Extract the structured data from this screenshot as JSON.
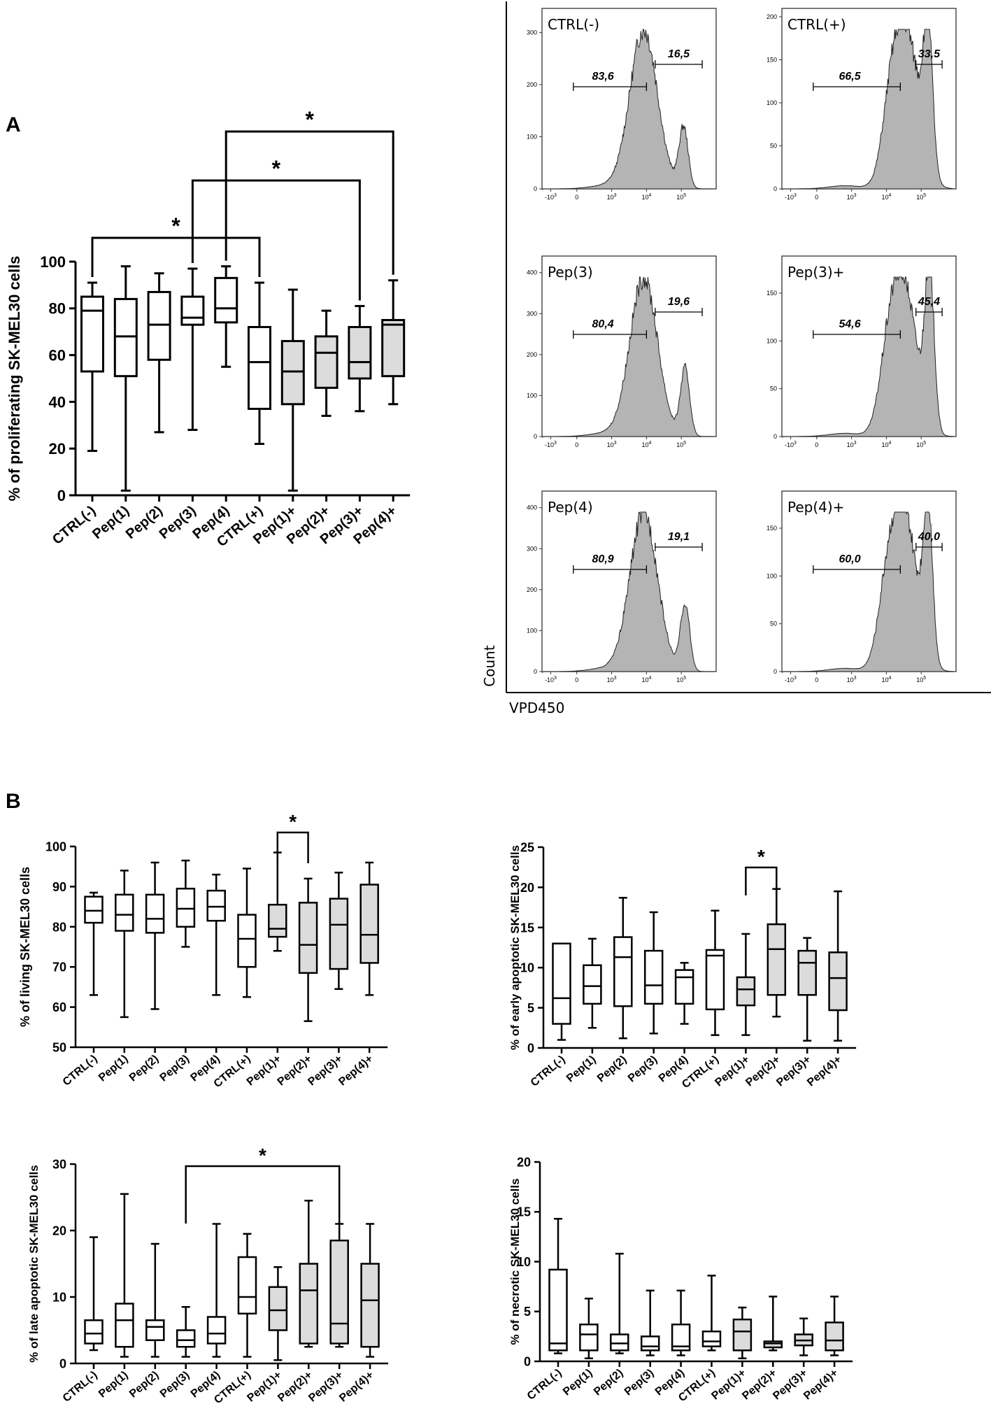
{
  "panel_labels": {
    "a": "A",
    "b": "B"
  },
  "colors": {
    "open_box": "#ffffff",
    "filled_box": "#dcdcdc",
    "histogram_fill": "#b4b4b4",
    "ink": "#000000"
  },
  "chart_data": [
    {
      "id": "proliferating",
      "type": "boxplot",
      "ylabel": "% of proliferating SK-MEL30 cells",
      "ylim": [
        0,
        100
      ],
      "yticks": [
        0,
        20,
        40,
        60,
        80,
        100
      ],
      "categories": [
        "CTRL(-)",
        "Pep(1)",
        "Pep(2)",
        "Pep(3)",
        "Pep(4)",
        "CTRL(+)",
        "Pep(1)+",
        "Pep(2)+",
        "Pep(3)+",
        "Pep(4)+"
      ],
      "filled": [
        false,
        false,
        false,
        false,
        false,
        false,
        true,
        true,
        true,
        true
      ],
      "boxes": [
        {
          "min": 19,
          "q1": 53,
          "median": 79,
          "q3": 85,
          "max": 91
        },
        {
          "min": 2,
          "q1": 51,
          "median": 68,
          "q3": 84,
          "max": 98
        },
        {
          "min": 27,
          "q1": 58,
          "median": 73,
          "q3": 87,
          "max": 95
        },
        {
          "min": 28,
          "q1": 73,
          "median": 76,
          "q3": 85,
          "max": 97
        },
        {
          "min": 55,
          "q1": 74,
          "median": 80,
          "q3": 93,
          "max": 98
        },
        {
          "min": 22,
          "q1": 37,
          "median": 57,
          "q3": 72,
          "max": 91
        },
        {
          "min": 2,
          "q1": 39,
          "median": 53,
          "q3": 66,
          "max": 88
        },
        {
          "min": 34,
          "q1": 46,
          "median": 61,
          "q3": 68,
          "max": 79
        },
        {
          "min": 36,
          "q1": 50,
          "median": 57,
          "q3": 72,
          "max": 81
        },
        {
          "min": 39,
          "q1": 51,
          "median": 73,
          "q3": 75,
          "max": 92
        }
      ],
      "significance": [
        {
          "from": 0,
          "to": 5,
          "label": "*"
        },
        {
          "from": 3,
          "to": 8,
          "label": "*"
        },
        {
          "from": 4,
          "to": 9,
          "label": "*"
        }
      ]
    },
    {
      "id": "living",
      "type": "boxplot",
      "ylabel": "% of living SK-MEL30 cells",
      "ylim": [
        50,
        100
      ],
      "yticks": [
        50,
        60,
        70,
        80,
        90,
        100
      ],
      "categories": [
        "CTRL(-)",
        "Pep(1)",
        "Pep(2)",
        "Pep(3)",
        "Pep(4)",
        "CTRL(+)",
        "Pep(1)+",
        "Pep(2)+",
        "Pep(3)+",
        "Pep(4)+"
      ],
      "filled": [
        false,
        false,
        false,
        false,
        false,
        false,
        true,
        true,
        true,
        true
      ],
      "boxes": [
        {
          "min": 63,
          "q1": 81,
          "median": 84,
          "q3": 87.5,
          "max": 88.5
        },
        {
          "min": 57.5,
          "q1": 79,
          "median": 83,
          "q3": 88,
          "max": 94
        },
        {
          "min": 59.5,
          "q1": 78.5,
          "median": 82,
          "q3": 88,
          "max": 96
        },
        {
          "min": 75,
          "q1": 80,
          "median": 84.5,
          "q3": 89.5,
          "max": 96.5
        },
        {
          "min": 63,
          "q1": 81.5,
          "median": 85,
          "q3": 89,
          "max": 93
        },
        {
          "min": 62.5,
          "q1": 70,
          "median": 77,
          "q3": 83,
          "max": 94.5
        },
        {
          "min": 74,
          "q1": 77.5,
          "median": 79.5,
          "q3": 85.5,
          "max": 98.5
        },
        {
          "min": 56.5,
          "q1": 68.5,
          "median": 75.5,
          "q3": 86,
          "max": 92
        },
        {
          "min": 64.5,
          "q1": 69.5,
          "median": 80.5,
          "q3": 87,
          "max": 93.5
        },
        {
          "min": 63,
          "q1": 71,
          "median": 78,
          "q3": 90.5,
          "max": 96
        }
      ],
      "significance": [
        {
          "from": 6,
          "to": 7,
          "label": "*"
        }
      ]
    },
    {
      "id": "early_apoptotic",
      "type": "boxplot",
      "ylabel": "% of early apoptotic SK-MEL30 cells",
      "ylim": [
        0,
        25
      ],
      "yticks": [
        0,
        5,
        10,
        15,
        20,
        25
      ],
      "categories": [
        "CTRL(-)",
        "Pep(1)",
        "Pep(2)",
        "Pep(3)",
        "Pep(4)",
        "CTRL(+)",
        "Pep(1)+",
        "Pep(2)+",
        "Pep(3)+",
        "Pep(4)+"
      ],
      "filled": [
        false,
        false,
        false,
        false,
        false,
        false,
        true,
        true,
        true,
        true
      ],
      "boxes": [
        {
          "min": 1,
          "q1": 3,
          "median": 6.2,
          "q3": 13,
          "max": 13
        },
        {
          "min": 2.5,
          "q1": 5.5,
          "median": 7.7,
          "q3": 10.3,
          "max": 13.6
        },
        {
          "min": 1.2,
          "q1": 5.2,
          "median": 11.3,
          "q3": 13.8,
          "max": 18.7
        },
        {
          "min": 1.8,
          "q1": 5.5,
          "median": 7.8,
          "q3": 12.1,
          "max": 16.9
        },
        {
          "min": 3,
          "q1": 5.5,
          "median": 8.8,
          "q3": 9.7,
          "max": 10.6
        },
        {
          "min": 1.6,
          "q1": 4.8,
          "median": 11.5,
          "q3": 12.2,
          "max": 17.1
        },
        {
          "min": 1.6,
          "q1": 5.3,
          "median": 7.3,
          "q3": 8.8,
          "max": 14.2
        },
        {
          "min": 3.9,
          "q1": 6.6,
          "median": 12.3,
          "q3": 15.4,
          "max": 19.8
        },
        {
          "min": 0.9,
          "q1": 6.6,
          "median": 10.6,
          "q3": 12.1,
          "max": 13.7
        },
        {
          "min": 0.9,
          "q1": 4.7,
          "median": 8.7,
          "q3": 11.9,
          "max": 19.5
        }
      ],
      "significance": [
        {
          "from": 6,
          "to": 7,
          "label": "*"
        }
      ]
    },
    {
      "id": "late_apoptotic",
      "type": "boxplot",
      "ylabel": "% of late apoptotic SK-MEL30 cells",
      "ylim": [
        0,
        30
      ],
      "yticks": [
        0,
        10,
        20,
        30
      ],
      "categories": [
        "CTRL(-)",
        "Pep(1)",
        "Pep(2)",
        "Pep(3)",
        "Pep(4)",
        "CTRL(+)",
        "Pep(1)+",
        "Pep(2)+",
        "Pep(3)+",
        "Pep(4)+"
      ],
      "filled": [
        false,
        false,
        false,
        false,
        false,
        false,
        true,
        true,
        true,
        true
      ],
      "boxes": [
        {
          "min": 2,
          "q1": 3,
          "median": 4.5,
          "q3": 6.5,
          "max": 19
        },
        {
          "min": 1,
          "q1": 2.5,
          "median": 6.5,
          "q3": 9,
          "max": 25.5
        },
        {
          "min": 1,
          "q1": 3.5,
          "median": 5.5,
          "q3": 6.5,
          "max": 18
        },
        {
          "min": 1,
          "q1": 2.5,
          "median": 3.5,
          "q3": 5,
          "max": 8.5
        },
        {
          "min": 1,
          "q1": 3,
          "median": 4.5,
          "q3": 7,
          "max": 21
        },
        {
          "min": 1,
          "q1": 7.5,
          "median": 10,
          "q3": 16,
          "max": 19.5
        },
        {
          "min": 0.5,
          "q1": 5,
          "median": 8,
          "q3": 11.5,
          "max": 14.5
        },
        {
          "min": 2.5,
          "q1": 3,
          "median": 11,
          "q3": 15,
          "max": 24.5
        },
        {
          "min": 2.5,
          "q1": 3,
          "median": 6,
          "q3": 18.5,
          "max": 21
        },
        {
          "min": 1,
          "q1": 2.5,
          "median": 9.5,
          "q3": 15,
          "max": 21
        }
      ],
      "significance": [
        {
          "from": 3,
          "to": 8,
          "label": "*"
        }
      ]
    },
    {
      "id": "necrotic",
      "type": "boxplot",
      "ylabel": "% of necrotic SK-MEL30 cells",
      "ylim": [
        0,
        20
      ],
      "yticks": [
        0,
        5,
        10,
        15,
        20
      ],
      "categories": [
        "CTRL(-)",
        "Pep(1)",
        "Pep(2)",
        "Pep(3)",
        "Pep(4)",
        "CTRL(+)",
        "Pep(1)+",
        "Pep(2)+",
        "Pep(3)+",
        "Pep(4)+"
      ],
      "filled": [
        false,
        false,
        false,
        false,
        false,
        false,
        true,
        true,
        true,
        true
      ],
      "boxes": [
        {
          "min": 0.8,
          "q1": 1.1,
          "median": 1.8,
          "q3": 9.2,
          "max": 14.3
        },
        {
          "min": 0.3,
          "q1": 1.1,
          "median": 2.7,
          "q3": 3.7,
          "max": 6.3
        },
        {
          "min": 0.8,
          "q1": 1.1,
          "median": 1.8,
          "q3": 2.7,
          "max": 10.8
        },
        {
          "min": 0.6,
          "q1": 1.1,
          "median": 1.5,
          "q3": 2.5,
          "max": 7.1
        },
        {
          "min": 0.6,
          "q1": 1.1,
          "median": 1.5,
          "q3": 3.7,
          "max": 7.1
        },
        {
          "min": 1.1,
          "q1": 1.5,
          "median": 2.0,
          "q3": 3.0,
          "max": 8.6
        },
        {
          "min": 0.3,
          "q1": 1.1,
          "median": 3.0,
          "q3": 4.2,
          "max": 5.4
        },
        {
          "min": 1.1,
          "q1": 1.4,
          "median": 1.8,
          "q3": 2.0,
          "max": 6.5
        },
        {
          "min": 0.6,
          "q1": 1.6,
          "median": 2.1,
          "q3": 2.7,
          "max": 4.3
        },
        {
          "min": 0.6,
          "q1": 1.1,
          "median": 2.1,
          "q3": 3.9,
          "max": 6.5
        }
      ],
      "significance": []
    },
    {
      "id": "flow_histograms",
      "type": "histogram",
      "xlabel": "VPD450",
      "ylabel": "Count",
      "x_ticks": [
        "-10^3",
        "0",
        "10^3",
        "10^4",
        "10^5"
      ],
      "panels": [
        {
          "title": "CTRL(-)",
          "ymax": 330,
          "yticks": [
            0,
            100,
            200,
            300
          ],
          "gate_left_pct": "83,6",
          "gate_right_pct": "16,5",
          "peaks": [
            {
              "pos": 0.55,
              "h": 1.0,
              "w": 0.09
            },
            {
              "pos": 0.81,
              "h": 0.38,
              "w": 0.03
            }
          ]
        },
        {
          "title": "CTRL(+)",
          "ymax": 200,
          "yticks": [
            0,
            50,
            100,
            150,
            200
          ],
          "gate_left_pct": "66,5",
          "gate_right_pct": "33,5",
          "peaks": [
            {
              "pos": 0.7,
              "h": 0.95,
              "w": 0.085
            },
            {
              "pos": 0.84,
              "h": 0.88,
              "w": 0.03
            },
            {
              "pos": 0.6,
              "h": 0.35,
              "w": 0.06
            }
          ]
        },
        {
          "title": "Pep(3)",
          "ymax": 420,
          "yticks": [
            0,
            100,
            200,
            300,
            400
          ],
          "gate_left_pct": "80,4",
          "gate_right_pct": "19,6",
          "peaks": [
            {
              "pos": 0.55,
              "h": 1.0,
              "w": 0.09
            },
            {
              "pos": 0.82,
              "h": 0.42,
              "w": 0.03
            }
          ]
        },
        {
          "title": "Pep(3)+",
          "ymax": 180,
          "yticks": [
            0,
            50,
            100,
            150
          ],
          "gate_left_pct": "54,6",
          "gate_right_pct": "45,4",
          "peaks": [
            {
              "pos": 0.68,
              "h": 0.95,
              "w": 0.085
            },
            {
              "pos": 0.85,
              "h": 1.0,
              "w": 0.03
            },
            {
              "pos": 0.58,
              "h": 0.3,
              "w": 0.06
            }
          ]
        },
        {
          "title": "Pep(4)",
          "ymax": 420,
          "yticks": [
            0,
            100,
            200,
            300,
            400
          ],
          "gate_left_pct": "80,9",
          "gate_right_pct": "19,1",
          "peaks": [
            {
              "pos": 0.55,
              "h": 1.0,
              "w": 0.09
            },
            {
              "pos": 0.82,
              "h": 0.42,
              "w": 0.03
            }
          ]
        },
        {
          "title": "Pep(4)+",
          "ymax": 180,
          "yticks": [
            0,
            50,
            100,
            150
          ],
          "gate_left_pct": "60,0",
          "gate_right_pct": "40,0",
          "peaks": [
            {
              "pos": 0.68,
              "h": 1.0,
              "w": 0.085
            },
            {
              "pos": 0.84,
              "h": 0.95,
              "w": 0.03
            },
            {
              "pos": 0.57,
              "h": 0.33,
              "w": 0.06
            }
          ]
        }
      ]
    }
  ]
}
